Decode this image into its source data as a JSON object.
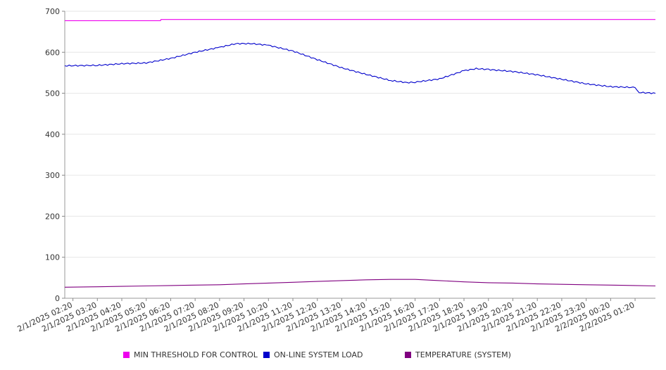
{
  "chart_data": {
    "type": "line",
    "ylim": [
      0,
      700
    ],
    "yticks": [
      0,
      100,
      200,
      300,
      400,
      500,
      600,
      700
    ],
    "x_range": [
      "2/1/2025 02:00",
      "2/2/2025 02:10"
    ],
    "x_tick_labels": [
      "2/1/2025 02:20",
      "2/1/2025 03:20",
      "2/1/2025 04:20",
      "2/1/2025 05:20",
      "2/1/2025 06:20",
      "2/1/2025 07:20",
      "2/1/2025 08:20",
      "2/1/2025 09:20",
      "2/1/2025 10:20",
      "2/1/2025 11:20",
      "2/1/2025 12:20",
      "2/1/2025 13:20",
      "2/1/2025 14:20",
      "2/1/2025 15:20",
      "2/1/2025 16:20",
      "2/1/2025 17:20",
      "2/1/2025 18:20",
      "2/1/2025 19:20",
      "2/1/2025 20:20",
      "2/1/2025 21:20",
      "2/1/2025 22:20",
      "2/1/2025 23:20",
      "2/2/2025 00:20",
      "2/2/2025 01:20"
    ],
    "grid": "horizontal",
    "legend": "bottom",
    "series": [
      {
        "name": "MIN THRESHOLD FOR CONTROL",
        "color": "#ee00ee",
        "points": [
          [
            "2/1/2025 02:00",
            677
          ],
          [
            "2/1/2025 05:55",
            677
          ],
          [
            "2/1/2025 05:56",
            680
          ],
          [
            "2/2/2025 02:10",
            680
          ]
        ]
      },
      {
        "name": "ON-LINE SYSTEM LOAD",
        "color": "#0000cc",
        "points": [
          [
            "2/1/2025 02:00",
            567
          ],
          [
            "2/1/2025 03:20",
            568
          ],
          [
            "2/1/2025 04:20",
            572
          ],
          [
            "2/1/2025 05:20",
            574
          ],
          [
            "2/1/2025 06:20",
            585
          ],
          [
            "2/1/2025 07:20",
            600
          ],
          [
            "2/1/2025 08:20",
            612
          ],
          [
            "2/1/2025 09:00",
            621
          ],
          [
            "2/1/2025 09:40",
            621
          ],
          [
            "2/1/2025 10:20",
            617
          ],
          [
            "2/1/2025 11:20",
            603
          ],
          [
            "2/1/2025 12:20",
            582
          ],
          [
            "2/1/2025 13:20",
            562
          ],
          [
            "2/1/2025 14:20",
            546
          ],
          [
            "2/1/2025 15:20",
            531
          ],
          [
            "2/1/2025 16:00",
            526
          ],
          [
            "2/1/2025 16:20",
            527
          ],
          [
            "2/1/2025 17:20",
            535
          ],
          [
            "2/1/2025 18:20",
            555
          ],
          [
            "2/1/2025 18:50",
            560
          ],
          [
            "2/1/2025 19:20",
            558
          ],
          [
            "2/1/2025 20:20",
            553
          ],
          [
            "2/1/2025 21:20",
            545
          ],
          [
            "2/1/2025 22:20",
            534
          ],
          [
            "2/1/2025 23:20",
            523
          ],
          [
            "2/2/2025 00:20",
            516
          ],
          [
            "2/2/2025 01:20",
            514
          ],
          [
            "2/2/2025 01:30",
            502
          ],
          [
            "2/2/2025 02:10",
            500
          ]
        ]
      },
      {
        "name": "TEMPERATURE (SYSTEM)",
        "color": "#800080",
        "points": [
          [
            "2/1/2025 02:00",
            27
          ],
          [
            "2/1/2025 03:20",
            28
          ],
          [
            "2/1/2025 04:20",
            29
          ],
          [
            "2/1/2025 05:20",
            30
          ],
          [
            "2/1/2025 06:20",
            31
          ],
          [
            "2/1/2025 07:20",
            32
          ],
          [
            "2/1/2025 08:20",
            33
          ],
          [
            "2/1/2025 09:20",
            35
          ],
          [
            "2/1/2025 10:20",
            37
          ],
          [
            "2/1/2025 11:20",
            39
          ],
          [
            "2/1/2025 12:20",
            41
          ],
          [
            "2/1/2025 13:20",
            43
          ],
          [
            "2/1/2025 14:20",
            45
          ],
          [
            "2/1/2025 15:20",
            46
          ],
          [
            "2/1/2025 16:20",
            46
          ],
          [
            "2/1/2025 17:20",
            43
          ],
          [
            "2/1/2025 18:20",
            40
          ],
          [
            "2/1/2025 19:20",
            38
          ],
          [
            "2/1/2025 20:20",
            37
          ],
          [
            "2/1/2025 21:20",
            35
          ],
          [
            "2/1/2025 22:20",
            34
          ],
          [
            "2/1/2025 23:20",
            33
          ],
          [
            "2/2/2025 00:20",
            32
          ],
          [
            "2/2/2025 01:20",
            31
          ],
          [
            "2/2/2025 02:10",
            30
          ]
        ]
      }
    ]
  }
}
